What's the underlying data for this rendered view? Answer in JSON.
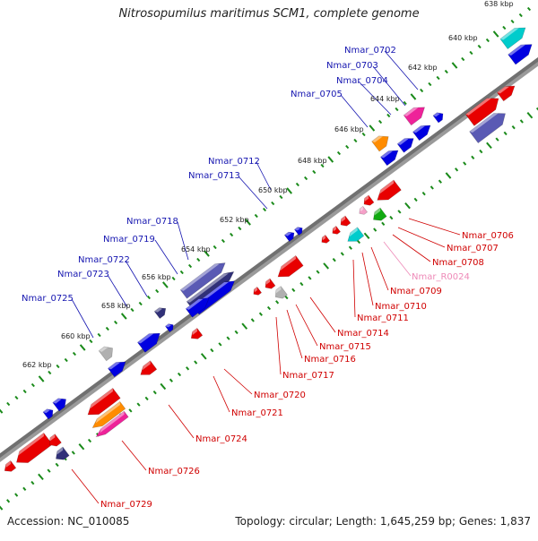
{
  "title": "Nitrosopumilus maritimus SCM1, complete genome",
  "footer": {
    "accession": "Accession: NC_010085",
    "topology": "Topology: circular; Length: 1,645,259 bp; Genes: 1,837"
  },
  "colors": {
    "backbone": "#707070",
    "tick": "#1a8a1a",
    "label_forward": "#1515b0",
    "label_reverse": "#d00000",
    "label_rna": "#ee8ab8",
    "gene_blue": "#0000e0",
    "gene_red": "#e80000",
    "gene_cyan": "#00cccc",
    "gene_magenta": "#ee2299",
    "gene_orange": "#ff8c00",
    "gene_purple": "#5a5ab4",
    "gene_navy": "#303078",
    "gene_grey": "#b0b0b0",
    "gene_green": "#11aa11",
    "rna_pink": "#f5a0c8"
  },
  "kbp_labels": [
    "638 kbp",
    "640 kbp",
    "642 kbp",
    "644 kbp",
    "646 kbp",
    "648 kbp",
    "650 kbp",
    "652 kbp",
    "654 kbp",
    "656 kbp",
    "658 kbp",
    "660 kbp",
    "662 kbp"
  ],
  "forward_labels": [
    "Nmar_0702",
    "Nmar_0703",
    "Nmar_0704",
    "Nmar_0705",
    "Nmar_0712",
    "Nmar_0713",
    "Nmar_0718",
    "Nmar_0719",
    "Nmar_0722",
    "Nmar_0723",
    "Nmar_0725"
  ],
  "reverse_labels": [
    "Nmar_0706",
    "Nmar_0707",
    "Nmar_0708",
    "Nmar_R0024",
    "Nmar_0709",
    "Nmar_0710",
    "Nmar_0711",
    "Nmar_0714",
    "Nmar_0715",
    "Nmar_0716",
    "Nmar_0717",
    "Nmar_0720",
    "Nmar_0721",
    "Nmar_0724",
    "Nmar_0726",
    "Nmar_0729"
  ]
}
